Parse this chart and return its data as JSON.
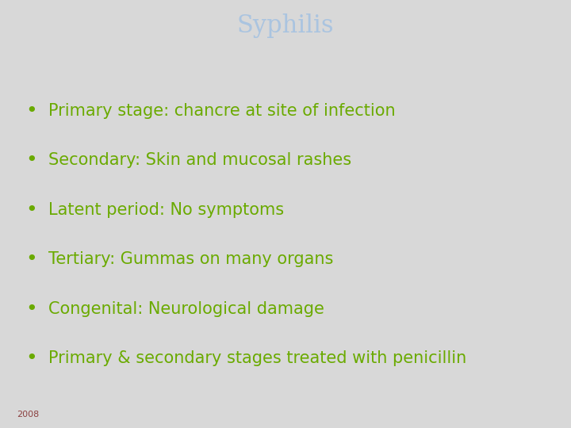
{
  "title": "Syphilis",
  "title_color": "#aac4e0",
  "title_bg_color": "#000000",
  "title_fontsize": 22,
  "header_yellow_color": "#ffff00",
  "body_bg_color": "#d8d8d8",
  "content_bg_color": "#f5f5f5",
  "separator_color": "#999999",
  "bullet_color": "#6aaa00",
  "bullet_text_color": "#6aaa00",
  "bullet_fontsize": 15,
  "footer_bg_color": "#1c1c1c",
  "footer_text": "2008",
  "footer_color": "#8b4040",
  "footer_fontsize": 8,
  "bullets": [
    "Primary stage: chancre at site of infection",
    "Secondary: Skin and mucosal rashes",
    "Latent period: No symptoms",
    "Tertiary: Gummas on many organs",
    "Congenital: Neurological damage",
    "Primary & secondary stages treated with penicillin"
  ]
}
